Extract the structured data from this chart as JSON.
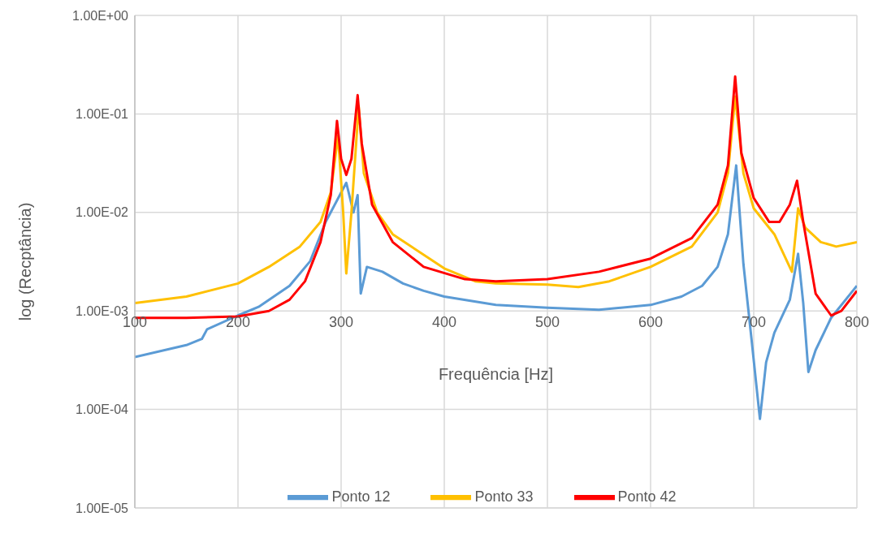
{
  "chart_data": {
    "type": "line",
    "xlabel": "Frequência [Hz]",
    "ylabel": "log (Recptância)",
    "xlim": [
      100,
      800
    ],
    "xticks": [
      100,
      200,
      300,
      400,
      500,
      600,
      700,
      800
    ],
    "ylim": [
      1e-05,
      1
    ],
    "yticks": [
      {
        "value": 1e-05,
        "label": "1.00E-05"
      },
      {
        "value": 0.0001,
        "label": "1.00E-04"
      },
      {
        "value": 0.001,
        "label": "1.00E-03"
      },
      {
        "value": 0.01,
        "label": "1.00E-02"
      },
      {
        "value": 0.1,
        "label": "1.00E-01"
      },
      {
        "value": 1,
        "label": "1.00E+00"
      }
    ],
    "log": "y",
    "grid": true,
    "legend": "bottom",
    "marker": "none",
    "line_style": "solid",
    "series": [
      {
        "name": "Ponto 12",
        "color": "#5b9bd5",
        "x": [
          100,
          150,
          165,
          170,
          200,
          220,
          250,
          270,
          285,
          305,
          312,
          316,
          319,
          325,
          340,
          360,
          380,
          400,
          450,
          500,
          550,
          600,
          630,
          650,
          665,
          675,
          683,
          690,
          698,
          706,
          712,
          720,
          735,
          743,
          748,
          753,
          760,
          775,
          800
        ],
        "values": [
          0.00034,
          0.00045,
          0.00052,
          0.00065,
          0.0009,
          0.0011,
          0.0018,
          0.0032,
          0.008,
          0.02,
          0.01,
          0.015,
          0.0015,
          0.0028,
          0.0025,
          0.0019,
          0.0016,
          0.0014,
          0.00115,
          0.00108,
          0.00103,
          0.00115,
          0.0014,
          0.0018,
          0.0028,
          0.006,
          0.03,
          0.003,
          0.0005,
          8e-05,
          0.0003,
          0.0006,
          0.0013,
          0.0038,
          0.0012,
          0.00024,
          0.0004,
          0.00085,
          0.0018
        ]
      },
      {
        "name": "Ponto 33",
        "color": "#ffc000",
        "x": [
          100,
          150,
          200,
          230,
          260,
          280,
          290,
          297,
          302,
          305,
          310,
          317,
          322,
          335,
          350,
          400,
          430,
          450,
          500,
          530,
          560,
          600,
          640,
          665,
          675,
          682,
          690,
          700,
          720,
          737,
          743,
          750,
          765,
          780,
          800
        ],
        "values": [
          0.0012,
          0.0014,
          0.0019,
          0.0028,
          0.0045,
          0.008,
          0.016,
          0.06,
          0.01,
          0.0024,
          0.01,
          0.12,
          0.025,
          0.01,
          0.006,
          0.0027,
          0.002,
          0.0019,
          0.00185,
          0.00175,
          0.002,
          0.0028,
          0.0045,
          0.01,
          0.025,
          0.15,
          0.025,
          0.011,
          0.006,
          0.0025,
          0.011,
          0.007,
          0.005,
          0.0045,
          0.005
        ]
      },
      {
        "name": "Ponto 42",
        "color": "#ff0000",
        "x": [
          100,
          150,
          200,
          230,
          250,
          265,
          280,
          290,
          296,
          300,
          305,
          310,
          316,
          320,
          330,
          350,
          380,
          420,
          450,
          500,
          550,
          600,
          640,
          665,
          675,
          682,
          688,
          700,
          715,
          725,
          735,
          742,
          748,
          760,
          775,
          785,
          800
        ],
        "values": [
          0.00085,
          0.00085,
          0.00088,
          0.001,
          0.0013,
          0.002,
          0.005,
          0.015,
          0.085,
          0.035,
          0.024,
          0.035,
          0.155,
          0.05,
          0.012,
          0.005,
          0.0028,
          0.0021,
          0.002,
          0.0021,
          0.0025,
          0.0034,
          0.0055,
          0.012,
          0.03,
          0.24,
          0.04,
          0.014,
          0.008,
          0.008,
          0.012,
          0.021,
          0.008,
          0.0015,
          0.0009,
          0.001,
          0.0016
        ]
      }
    ]
  }
}
